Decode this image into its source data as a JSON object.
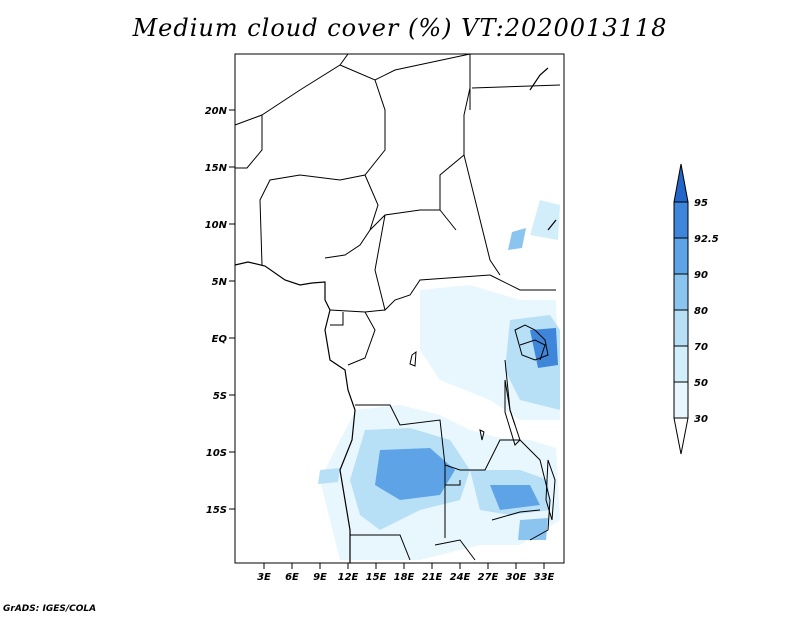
{
  "title": "Medium cloud cover (%) VT:2020013118",
  "credit": "GrADS: IGES/COLA",
  "map": {
    "lat_labels": [
      "20N",
      "15N",
      "10N",
      "5N",
      "EQ",
      "5S",
      "10S",
      "15S"
    ],
    "lon_labels": [
      "3E",
      "6E",
      "9E",
      "12E",
      "15E",
      "18E",
      "21E",
      "24E",
      "27E",
      "30E",
      "33E"
    ]
  },
  "legend": {
    "levels": [
      "30",
      "50",
      "70",
      "80",
      "90",
      "92.5",
      "95"
    ],
    "colors": [
      "#e8f6fd",
      "#d2eefb",
      "#b7e0f7",
      "#8cc4f0",
      "#5ea3e6",
      "#3f86da",
      "#2166c8"
    ]
  },
  "colors": {
    "outline": "#000000",
    "background": "#ffffff"
  }
}
